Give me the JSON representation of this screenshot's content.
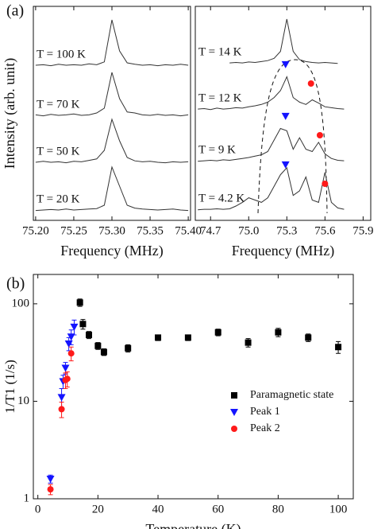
{
  "chart_data": [
    {
      "type": "spectra",
      "panel_label": "(a)",
      "ylabel": "Intensity (arb. unit)",
      "xlabel": "Frequency (MHz)",
      "xlim": [
        75.197,
        75.403
      ],
      "xticks": [
        {
          "value": 75.2,
          "label": "75.20"
        },
        75.25,
        {
          "value": 75.3,
          "label": "75.30"
        },
        75.35,
        {
          "value": 75.4,
          "label": "75.40"
        }
      ],
      "x": [
        75.2,
        75.21,
        75.22,
        75.23,
        75.24,
        75.25,
        75.26,
        75.27,
        75.28,
        75.29,
        75.3,
        75.31,
        75.32,
        75.33,
        75.34,
        75.35,
        75.36,
        75.37,
        75.38,
        75.39,
        75.4
      ],
      "series": [
        {
          "name": "T = 100 K",
          "color": "#333333",
          "values": [
            0.05,
            0.06,
            0.04,
            0.07,
            0.05,
            0.06,
            0.05,
            0.08,
            0.06,
            0.12,
            1.0,
            0.35,
            0.1,
            0.07,
            0.05,
            0.06,
            0.04,
            0.06,
            0.05,
            0.07,
            0.05
          ]
        },
        {
          "name": "T = 70 K",
          "color": "#333333",
          "values": [
            0.06,
            0.04,
            0.07,
            0.05,
            0.06,
            0.08,
            0.05,
            0.06,
            0.1,
            0.2,
            0.95,
            0.4,
            0.12,
            0.1,
            0.06,
            0.05,
            0.07,
            0.05,
            0.06,
            0.04,
            0.06
          ]
        },
        {
          "name": "T = 50 K",
          "color": "#333333",
          "values": [
            0.05,
            0.07,
            0.05,
            0.06,
            0.04,
            0.07,
            0.06,
            0.09,
            0.12,
            0.3,
            0.95,
            0.5,
            0.15,
            0.08,
            0.06,
            0.07,
            0.05,
            0.04,
            0.06,
            0.05,
            0.06
          ]
        },
        {
          "name": "T = 20 K",
          "color": "#333333",
          "values": [
            0.04,
            0.05,
            0.06,
            0.05,
            0.07,
            0.05,
            0.06,
            0.07,
            0.08,
            0.15,
            0.95,
            0.55,
            0.15,
            0.09,
            0.07,
            0.06,
            0.05,
            0.06,
            0.07,
            0.05,
            0.04
          ]
        }
      ]
    },
    {
      "type": "spectra",
      "xlabel": "Frequency (MHz)",
      "xlim": [
        74.58,
        75.96
      ],
      "xticks": [
        74.7,
        {
          "value": 75.0,
          "label": "75.0"
        },
        75.3,
        75.6,
        75.9
      ],
      "x": [
        74.6,
        74.65,
        74.7,
        74.75,
        74.8,
        74.85,
        74.9,
        74.95,
        75.0,
        75.05,
        75.1,
        75.15,
        75.2,
        75.25,
        75.3,
        75.35,
        75.4,
        75.45,
        75.5,
        75.55,
        75.6,
        75.65,
        75.7,
        75.75
      ],
      "series": [
        {
          "name": "T = 14 K",
          "color": "#333333",
          "values": [
            null,
            null,
            null,
            null,
            null,
            0.05,
            0.06,
            0.05,
            0.07,
            0.06,
            0.08,
            0.1,
            0.15,
            0.3,
            1.0,
            0.3,
            0.12,
            0.08,
            0.06,
            0.05,
            0.06,
            0.05,
            0.04,
            null
          ]
        },
        {
          "name": "T = 12 K",
          "color": "#333333",
          "values": [
            0.05,
            0.06,
            0.04,
            0.07,
            0.05,
            0.06,
            0.08,
            0.07,
            0.1,
            0.12,
            0.15,
            0.2,
            0.3,
            0.45,
            0.75,
            0.3,
            0.2,
            0.15,
            0.25,
            0.18,
            0.1,
            0.08,
            0.06,
            0.05
          ]
        },
        {
          "name": "T = 9 K",
          "color": "#333333",
          "values": [
            0.04,
            0.05,
            0.06,
            0.05,
            0.07,
            0.06,
            0.08,
            0.1,
            0.12,
            0.15,
            0.18,
            0.25,
            0.5,
            0.75,
            0.7,
            0.3,
            0.55,
            0.3,
            0.25,
            0.45,
            0.2,
            0.1,
            0.06,
            0.05
          ]
        },
        {
          "name": "T = 4.2 K",
          "color": "#333333",
          "values": [
            0.04,
            0.05,
            0.05,
            0.06,
            0.05,
            0.06,
            0.12,
            0.2,
            0.3,
            0.25,
            0.2,
            0.3,
            0.55,
            0.8,
            0.95,
            0.35,
            0.45,
            0.75,
            0.25,
            0.2,
            0.85,
            0.2,
            0.08,
            0.05
          ]
        }
      ],
      "peak1_x": [
        null,
        75.29,
        75.29,
        75.29
      ],
      "peak1_color": "#1414ff",
      "peak2_x": [
        null,
        75.49,
        75.56,
        75.6
      ],
      "peak2_color": "#ff1a1a"
    },
    {
      "type": "scatter",
      "panel_label": "(b)",
      "xlabel": "Temperature (K)",
      "ylabel": "1/T1 (1/s)",
      "log_y": true,
      "xlim": [
        -1.5,
        105
      ],
      "xticks": [
        0,
        20,
        40,
        60,
        80,
        100
      ],
      "ylim": [
        1,
        200
      ],
      "yticks": [
        1,
        10,
        100
      ],
      "legend": "right",
      "series": [
        {
          "name": "Paramagnetic state",
          "color": "#000000",
          "marker": "square",
          "x": [
            14,
            15,
            17,
            20,
            22,
            30,
            40,
            50,
            60,
            70,
            80,
            90,
            100
          ],
          "values": [
            103,
            62,
            48,
            37,
            32,
            35,
            45,
            45,
            51,
            40,
            51,
            45,
            36
          ],
          "errors": [
            9,
            7,
            4,
            3,
            2.5,
            3,
            3,
            3,
            4,
            4,
            5,
            4,
            5
          ]
        },
        {
          "name": "Peak 1",
          "color": "#1414ff",
          "marker": "triangle",
          "x": [
            4.2,
            7.9,
            8.4,
            9.2,
            10.3,
            11.1,
            12.1
          ],
          "values": [
            1.6,
            11,
            16,
            22,
            39,
            46,
            58
          ],
          "errors": [
            0.15,
            2.5,
            2.5,
            3,
            6,
            8,
            10
          ]
        },
        {
          "name": "Peak 2",
          "color": "#ff1a1a",
          "marker": "circle",
          "x": [
            4.2,
            7.9,
            9.2,
            9.8,
            11.1
          ],
          "values": [
            1.25,
            8.3,
            16.5,
            17,
            31
          ],
          "errors": [
            0.15,
            1.5,
            3,
            3,
            5
          ]
        }
      ]
    }
  ]
}
